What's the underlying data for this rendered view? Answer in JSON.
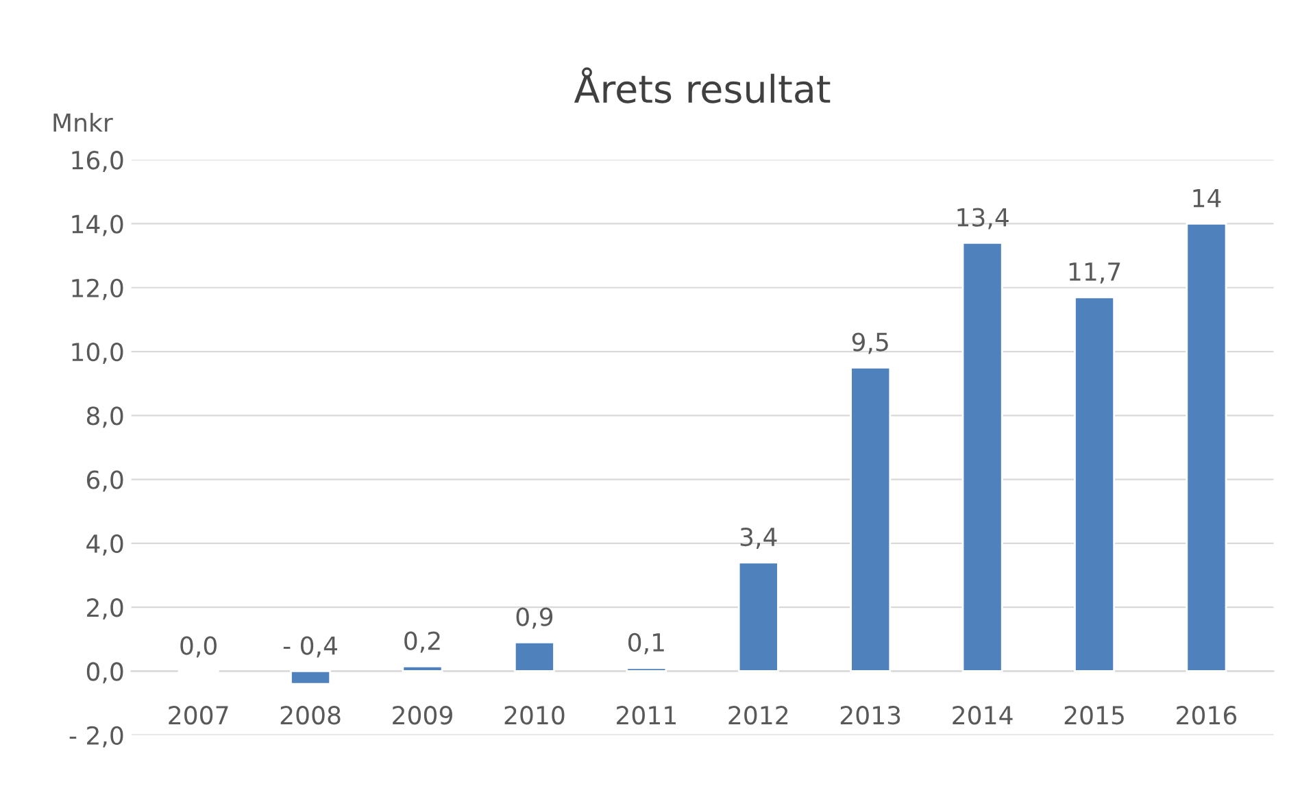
{
  "chart_data": {
    "type": "bar",
    "title": "Årets resultat",
    "ylabel": "Mnkr",
    "categories": [
      "2007",
      "2008",
      "2009",
      "2010",
      "2011",
      "2012",
      "2013",
      "2014",
      "2015",
      "2016"
    ],
    "series": [
      {
        "color": "#4f81bd",
        "values": [
          -0.04,
          -0.4,
          0.15,
          0.9,
          0.1,
          3.4,
          9.5,
          13.4,
          11.7,
          14
        ],
        "value_labels": [
          "0,0",
          "- 0,4",
          "0,2",
          "0,9",
          "0,1",
          "3,4",
          "9,5",
          "13,4",
          "11,7",
          "14"
        ]
      }
    ],
    "ylim": [
      -2,
      16
    ],
    "yticks": [
      {
        "value": -2,
        "label": "- 2,0"
      },
      {
        "value": 0,
        "label": "0,0"
      },
      {
        "value": 2,
        "label": "2,0"
      },
      {
        "value": 4,
        "label": "4,0"
      },
      {
        "value": 6,
        "label": "6,0"
      },
      {
        "value": 8,
        "label": "8,0"
      },
      {
        "value": 10,
        "label": "10,0"
      },
      {
        "value": 12,
        "label": "12,0"
      },
      {
        "value": 14,
        "label": "14,0"
      },
      {
        "value": 16,
        "label": "16,0"
      }
    ],
    "grid": "y",
    "legend": false
  }
}
